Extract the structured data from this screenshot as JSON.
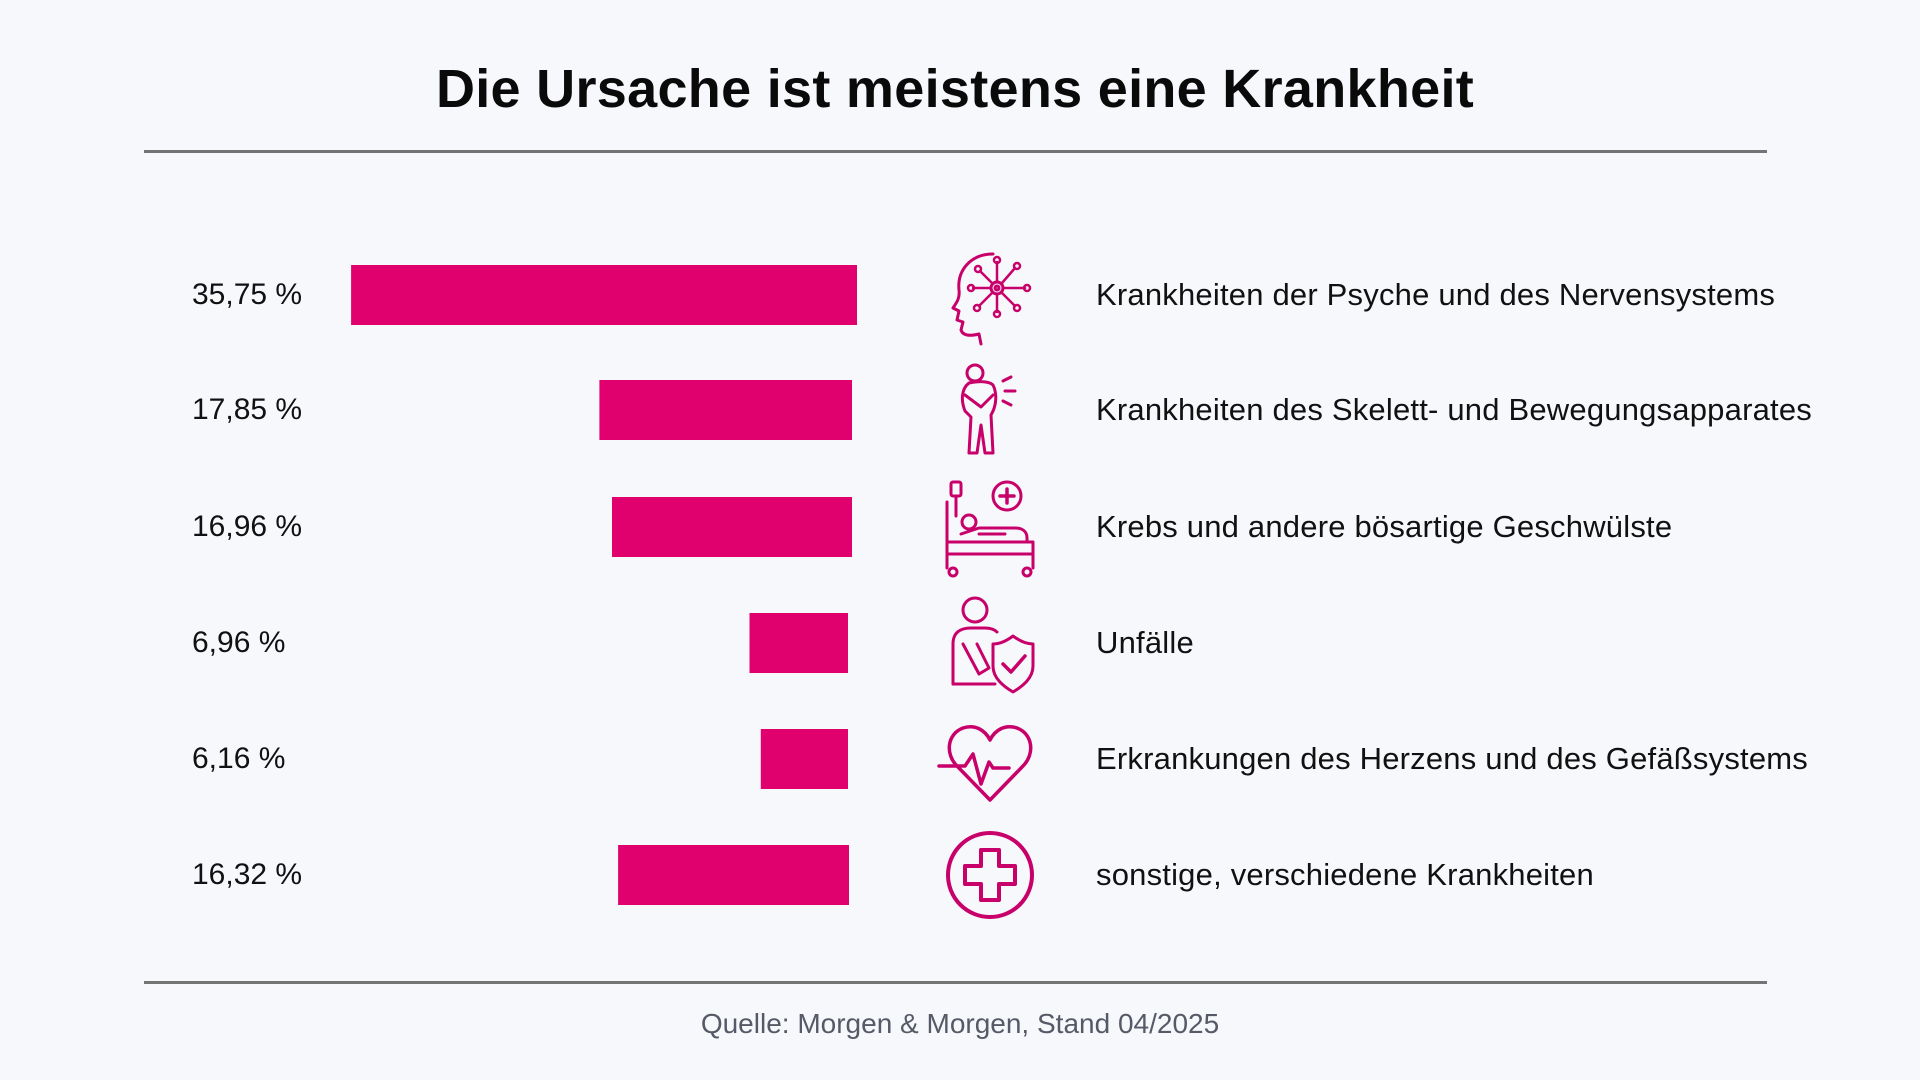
{
  "title": "Die Ursache ist meistens eine Krankheit",
  "source": "Quelle: Morgen & Morgen, Stand 04/2025",
  "colors": {
    "bar": "#e0006e",
    "icon": "#c8006a",
    "rule": "#747474"
  },
  "chart_data": {
    "type": "bar",
    "orientation": "horizontal",
    "title": "Die Ursache ist meistens eine Krankheit",
    "unit": "%",
    "categories": [
      "Krankheiten der Psyche und des Nervensystems",
      "Krankheiten des Skelett- und Bewegungsapparates",
      "Krebs und andere bösartige Geschwülste",
      "Unfälle",
      "Erkrankungen des Herzens und des Gefäßsystems",
      "sonstige, verschiedene Krankheiten"
    ],
    "values": [
      35.75,
      17.85,
      16.96,
      6.96,
      6.16,
      16.32
    ],
    "value_labels": [
      "35,75 %",
      "17,85 %",
      "16,96 %",
      "6,96 %",
      "6,16 %",
      "16,32 %"
    ],
    "icons": [
      "brain-head-icon",
      "back-pain-icon",
      "hospital-bed-icon",
      "injury-shield-icon",
      "heartbeat-icon",
      "medical-cross-icon"
    ]
  }
}
